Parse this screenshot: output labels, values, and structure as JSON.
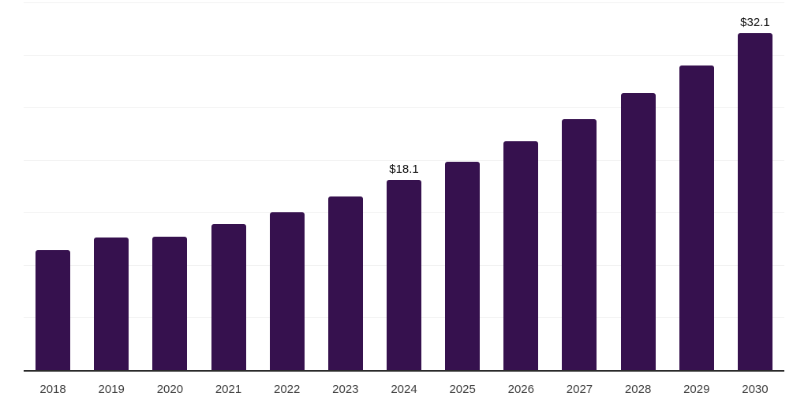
{
  "chart_data": {
    "type": "bar",
    "title": "",
    "xlabel": "",
    "ylabel": "",
    "categories": [
      "2018",
      "2019",
      "2020",
      "2021",
      "2022",
      "2023",
      "2024",
      "2025",
      "2026",
      "2027",
      "2028",
      "2029",
      "2030"
    ],
    "values": [
      11.4,
      12.6,
      12.7,
      13.9,
      15.0,
      16.5,
      18.1,
      19.8,
      21.8,
      23.9,
      26.4,
      29.0,
      32.1
    ],
    "value_labels": {
      "2024": "$18.1",
      "2030": "$32.1"
    },
    "ylim": [
      0,
      35
    ],
    "grid_step": 5,
    "grid": true,
    "legend": false,
    "colors": {
      "bar": "#36114E",
      "grid": "#F2F2F2",
      "axis_line": "#2B2B2B",
      "tick_label": "#3D3D3D",
      "value_label": "#111111",
      "background": "#FFFFFF"
    }
  }
}
